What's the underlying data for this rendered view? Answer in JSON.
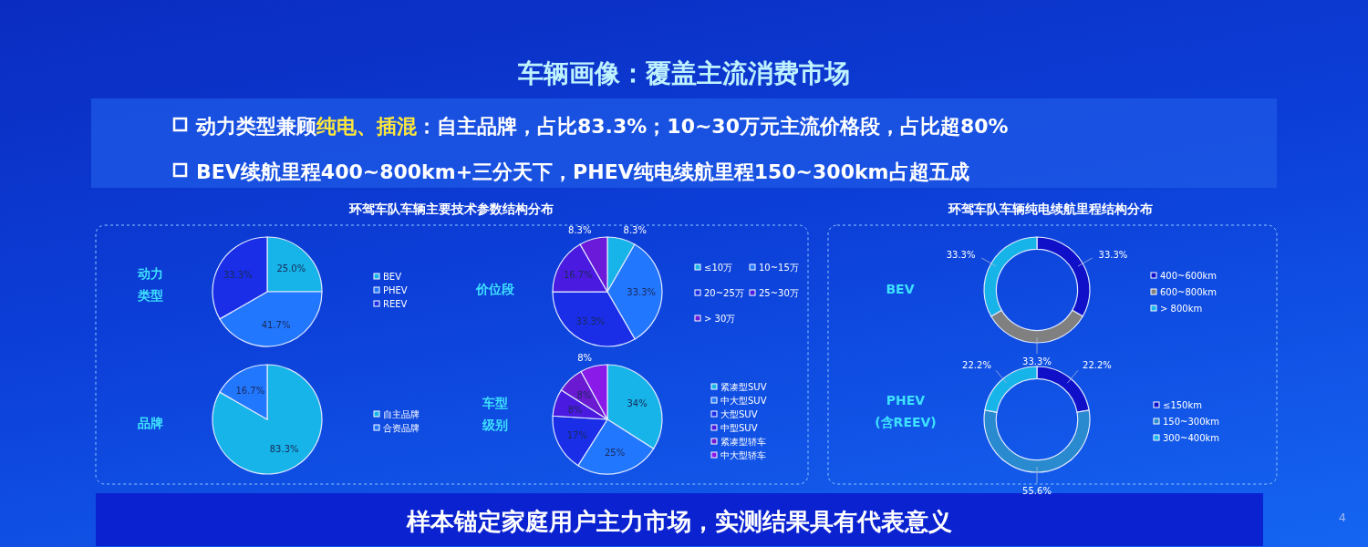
{
  "chart_data": [
    {
      "type": "pie",
      "title": "动力类型",
      "categories": [
        "BEV",
        "PHEV",
        "REEV"
      ],
      "values": [
        25.0,
        41.7,
        33.3
      ],
      "value_labels": [
        "25.0%",
        "41.7%",
        "33.3%"
      ],
      "colors": [
        "#16b4e8",
        "#2277ff",
        "#1a2ee8"
      ],
      "legend": "right",
      "annotations": [
        "车辆画像：覆盖主流消费市场",
        "动力类型兼顾",
        "纯电、插混",
        "：自主品牌，占比83.3%；10~30万元主流价格段，占比超80%",
        "BEV续航里程400~800km+三分天下，PHEV纯电续航里程150~300km占超五成",
        "环驾车队车辆主要技术参数结构分布",
        "样本锚定家庭用户主力市场，实测结果具有代表意义",
        "4"
      ]
    },
    {
      "type": "pie",
      "title": "品牌",
      "categories": [
        "自主品牌",
        "合资品牌"
      ],
      "values": [
        83.3,
        16.7
      ],
      "value_labels": [
        "83.3%",
        "16.7%"
      ],
      "colors": [
        "#16b4e8",
        "#2277ff"
      ],
      "legend": "right"
    },
    {
      "type": "pie",
      "title": "价位段",
      "categories": [
        "≤10万",
        "10~15万",
        "20~25万",
        "25~30万",
        "> 30万"
      ],
      "values": [
        8.3,
        33.3,
        33.3,
        16.7,
        8.3
      ],
      "value_labels": [
        "8.3%",
        "33.3%",
        "33.3%",
        "16.7%",
        "8.3%"
      ],
      "colors": [
        "#16b4e8",
        "#2277ff",
        "#1a2ee8",
        "#4a1ae0",
        "#6a1ad8"
      ],
      "legend": "right"
    },
    {
      "type": "pie",
      "title": "车型级别",
      "categories": [
        "紧凑型SUV",
        "中大型SUV",
        "大型SUV",
        "中型SUV",
        "紧凑型轿车",
        "中大型轿车"
      ],
      "values": [
        34,
        25,
        17,
        8,
        8,
        8
      ],
      "value_labels": [
        "34%",
        "25%",
        "17%",
        "8%",
        "8%",
        "8%"
      ],
      "colors": [
        "#16b4e8",
        "#2277ff",
        "#1a2ee8",
        "#4a1ae0",
        "#6a1ad0",
        "#8a1ae8"
      ],
      "legend": "right"
    },
    {
      "type": "donut",
      "title": "BEV",
      "categories": [
        "400~600km",
        "600~800km",
        "> 800km"
      ],
      "values": [
        33.3,
        33.3,
        33.3
      ],
      "value_labels": [
        "33.3%",
        "33.3%",
        "33.3%"
      ],
      "colors": [
        "#1010c8",
        "#808080",
        "#16b4e8"
      ],
      "legend": "right",
      "annotations": [
        "环驾车队车辆纯电续航里程结构分布"
      ]
    },
    {
      "type": "donut",
      "title": "PHEV\n(含REEV)",
      "categories": [
        "≤150km",
        "150~300km",
        "300~400km"
      ],
      "values": [
        22.2,
        55.6,
        22.2
      ],
      "value_labels": [
        "22.2%",
        "55.6%",
        "22.2%"
      ],
      "colors": [
        "#1010c8",
        "#2a8ad0",
        "#16b4e8"
      ],
      "legend": "right"
    }
  ]
}
